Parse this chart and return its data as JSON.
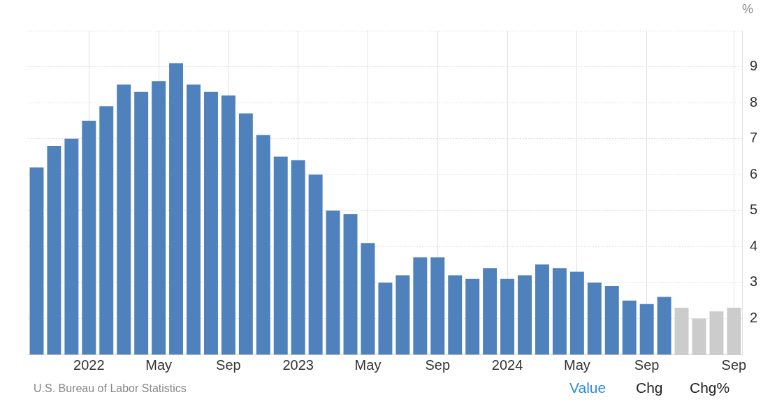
{
  "chart_data": {
    "type": "bar",
    "ylabel": "%",
    "categories": [
      null,
      null,
      null,
      "2022",
      null,
      null,
      null,
      "May",
      null,
      null,
      null,
      "Sep",
      null,
      null,
      null,
      "2023",
      null,
      null,
      null,
      "May",
      null,
      null,
      null,
      "Sep",
      null,
      null,
      null,
      "2024",
      null,
      null,
      null,
      "May",
      null,
      null,
      null,
      "Sep",
      null,
      null,
      null,
      null,
      "Sep"
    ],
    "values": [
      6.2,
      6.8,
      7.0,
      7.5,
      7.9,
      8.5,
      8.3,
      8.6,
      9.1,
      8.5,
      8.3,
      8.2,
      7.7,
      7.1,
      6.5,
      6.4,
      6.0,
      5.0,
      4.9,
      4.1,
      3.0,
      3.2,
      3.7,
      3.7,
      3.2,
      3.1,
      3.4,
      3.1,
      3.2,
      3.5,
      3.4,
      3.3,
      3.0,
      2.9,
      2.5,
      2.4,
      2.6,
      2.3,
      2.0,
      2.2,
      2.3
    ],
    "colors": [
      "#4f81bd",
      "#4f81bd",
      "#4f81bd",
      "#4f81bd",
      "#4f81bd",
      "#4f81bd",
      "#4f81bd",
      "#4f81bd",
      "#4f81bd",
      "#4f81bd",
      "#4f81bd",
      "#4f81bd",
      "#4f81bd",
      "#4f81bd",
      "#4f81bd",
      "#4f81bd",
      "#4f81bd",
      "#4f81bd",
      "#4f81bd",
      "#4f81bd",
      "#4f81bd",
      "#4f81bd",
      "#4f81bd",
      "#4f81bd",
      "#4f81bd",
      "#4f81bd",
      "#4f81bd",
      "#4f81bd",
      "#4f81bd",
      "#4f81bd",
      "#4f81bd",
      "#4f81bd",
      "#4f81bd",
      "#4f81bd",
      "#4f81bd",
      "#4f81bd",
      "#4f81bd",
      "#cccccc",
      "#cccccc",
      "#cccccc",
      "#cccccc"
    ],
    "ylim": [
      1,
      10
    ],
    "yticks": [
      2,
      3,
      4,
      5,
      6,
      7,
      8,
      9,
      {
        "value": 10,
        "label": null
      }
    ],
    "grid": true,
    "legend": false,
    "annotations": [
      "U.S. Bureau of Labor Statistics",
      "Value",
      "Chg",
      "Chg%"
    ]
  }
}
